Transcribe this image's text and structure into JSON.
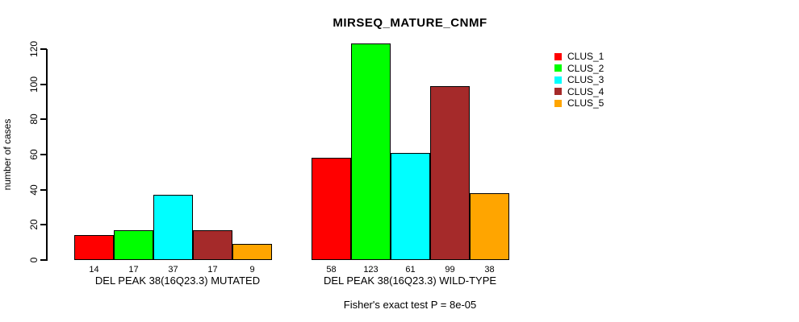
{
  "chart_data": {
    "type": "bar",
    "title": "MIRSEQ_MATURE_CNMF",
    "xlabel": "",
    "ylabel": "number of cases",
    "ylim": [
      0,
      120
    ],
    "yticks": [
      0,
      20,
      40,
      60,
      80,
      100,
      120
    ],
    "grid": false,
    "legend_position": "right",
    "background_color": "#ffffff",
    "bar_border_color": "#000000",
    "categories": [
      "DEL PEAK 38(16Q23.3) MUTATED",
      "DEL PEAK 38(16Q23.3) WILD-TYPE"
    ],
    "series": [
      {
        "name": "CLUS_1",
        "color": "#FF0000",
        "values": [
          14,
          58
        ]
      },
      {
        "name": "CLUS_2",
        "color": "#00FF00",
        "values": [
          17,
          123
        ]
      },
      {
        "name": "CLUS_3",
        "color": "#00FFFF",
        "values": [
          37,
          61
        ]
      },
      {
        "name": "CLUS_4",
        "color": "#A52A2A",
        "values": [
          17,
          99
        ]
      },
      {
        "name": "CLUS_5",
        "color": "#FFA500",
        "values": [
          9,
          38
        ]
      }
    ],
    "bar_value_labels": [
      [
        14,
        17,
        37,
        17,
        9
      ],
      [
        58,
        123,
        61,
        99,
        38
      ]
    ],
    "annotation": "Fisher's exact test P = 8e-05"
  }
}
